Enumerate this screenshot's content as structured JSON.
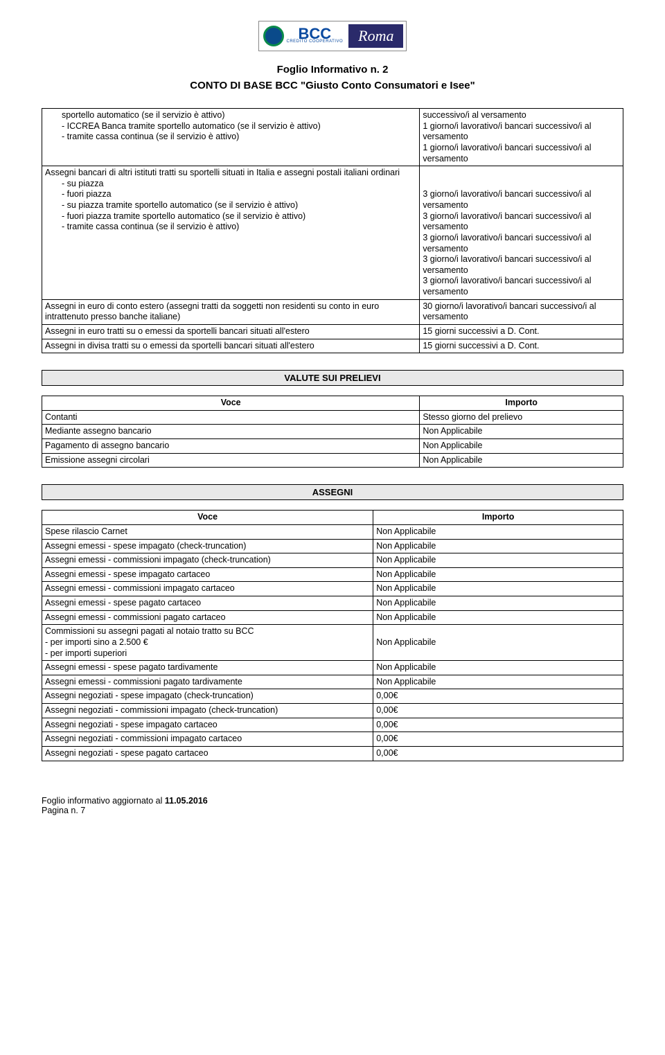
{
  "header": {
    "logo_bcc": "BCC",
    "logo_bcc_sub": "CREDITO COOPERATIVO",
    "logo_roma": "Roma",
    "title": "Foglio Informativo n. 2",
    "subtitle": "CONTO DI BASE BCC \"Giusto Conto Consumatori e Isee\""
  },
  "table1": {
    "rows": [
      {
        "indented": [
          "sportello automatico (se il servizio è attivo)",
          "-   ICCREA Banca tramite sportello automatico (se il servizio è attivo)",
          "-   tramite cassa continua (se il servizio è attivo)"
        ],
        "right": "successivo/i al versamento\n1 giorno/i lavorativo/i bancari successivo/i al versamento\n1 giorno/i lavorativo/i bancari successivo/i al versamento"
      },
      {
        "plain": "Assegni bancari di altri istituti tratti su sportelli situati in Italia e assegni postali italiani ordinari",
        "indented": [
          "-   su piazza",
          "-   fuori piazza",
          "-   su piazza tramite sportello automatico (se il servizio è attivo)",
          "-   fuori piazza tramite sportello automatico (se il servizio è attivo)",
          "-   tramite cassa continua (se il servizio è attivo)"
        ],
        "right": "\n\n3 giorno/i lavorativo/i bancari successivo/i al versamento\n3 giorno/i lavorativo/i bancari successivo/i al versamento\n3 giorno/i lavorativo/i bancari successivo/i al versamento\n3 giorno/i lavorativo/i bancari successivo/i al versamento\n3 giorno/i lavorativo/i bancari successivo/i al versamento"
      },
      {
        "plain": "Assegni in euro di conto estero (assegni tratti da soggetti non residenti su conto in euro intrattenuto presso banche italiane)",
        "right": "30 giorno/i lavorativo/i bancari successivo/i al versamento"
      },
      {
        "plain": "Assegni in euro tratti su o emessi da sportelli bancari situati all'estero",
        "right": "15 giorni successivi a D. Cont."
      },
      {
        "plain": "Assegni in divisa tratti su o emessi da sportelli bancari situati all'estero",
        "right": "15 giorni successivi a D. Cont."
      }
    ]
  },
  "section_valute": "VALUTE SUI PRELIEVI",
  "table2": {
    "col_voce": "Voce",
    "col_importo": "Importo",
    "rows": [
      [
        "Contanti",
        "Stesso giorno del prelievo"
      ],
      [
        "Mediante assegno bancario",
        "Non Applicabile"
      ],
      [
        "Pagamento di assegno bancario",
        "Non Applicabile"
      ],
      [
        "Emissione assegni circolari",
        "Non Applicabile"
      ]
    ]
  },
  "section_assegni": "ASSEGNI",
  "table3": {
    "col_voce": "Voce",
    "col_importo": "Importo",
    "rows": [
      [
        "Spese rilascio Carnet",
        "Non Applicabile"
      ],
      [
        "Assegni emessi - spese impagato (check-truncation)",
        "Non Applicabile"
      ],
      [
        "Assegni emessi - commissioni impagato (check-truncation)",
        "Non Applicabile"
      ],
      [
        "Assegni emessi - spese impagato cartaceo",
        "Non Applicabile"
      ],
      [
        "Assegni emessi - commissioni impagato cartaceo",
        "Non Applicabile"
      ],
      [
        "Assegni emessi - spese pagato cartaceo",
        "Non Applicabile"
      ],
      [
        "Assegni emessi - commissioni pagato cartaceo",
        "Non Applicabile"
      ],
      [
        "Commissioni su assegni pagati al notaio tratto su BCC\n- per importi sino a 2.500 €\n- per importi superiori",
        "\nNon Applicabile"
      ],
      [
        "Assegni emessi - spese pagato tardivamente",
        "Non Applicabile"
      ],
      [
        "Assegni emessi - commissioni pagato tardivamente",
        "Non Applicabile"
      ],
      [
        "Assegni negoziati - spese impagato (check-truncation)",
        "0,00€"
      ],
      [
        "Assegni negoziati - commissioni impagato (check-truncation)",
        "0,00€"
      ],
      [
        "Assegni negoziati - spese impagato cartaceo",
        "0,00€"
      ],
      [
        "Assegni negoziati - commissioni impagato cartaceo",
        "0,00€"
      ],
      [
        "Assegni negoziati - spese pagato cartaceo",
        "0,00€"
      ]
    ]
  },
  "footer": {
    "line1_a": "Foglio informativo aggiornato al ",
    "line1_b": "11.05.2016",
    "line2": "Pagina n. 7"
  }
}
